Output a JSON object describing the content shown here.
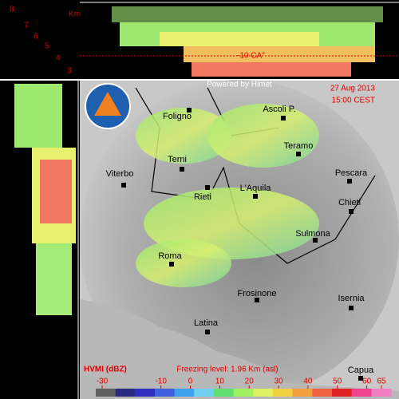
{
  "top_panel": {
    "unit": "Km",
    "heights": [
      8,
      7,
      6,
      5,
      4,
      3
    ],
    "isotherm": "-10 CA°"
  },
  "header": {
    "credit": "Powered by Himet",
    "date": "27 Aug 2013",
    "time": "15:00 CEST"
  },
  "cities": [
    {
      "name": "Foligno"
    },
    {
      "name": "Ascoli P."
    },
    {
      "name": "Teramo"
    },
    {
      "name": "Terni"
    },
    {
      "name": "Pescara"
    },
    {
      "name": "Viterbo"
    },
    {
      "name": "Rieti"
    },
    {
      "name": "L'Aquila"
    },
    {
      "name": "Chieti"
    },
    {
      "name": "Sulmona"
    },
    {
      "name": "Roma"
    },
    {
      "name": "Frosinone"
    },
    {
      "name": "Isernia"
    },
    {
      "name": "Latina"
    },
    {
      "name": "Capua"
    }
  ],
  "footer": {
    "product": "HVMI (dBZ)",
    "freezing_level": "Freezing level: 1.96 Km (asl)"
  },
  "colorbar": {
    "ticks": [
      -30,
      -10,
      0,
      10,
      20,
      30,
      40,
      50,
      60,
      65
    ]
  }
}
